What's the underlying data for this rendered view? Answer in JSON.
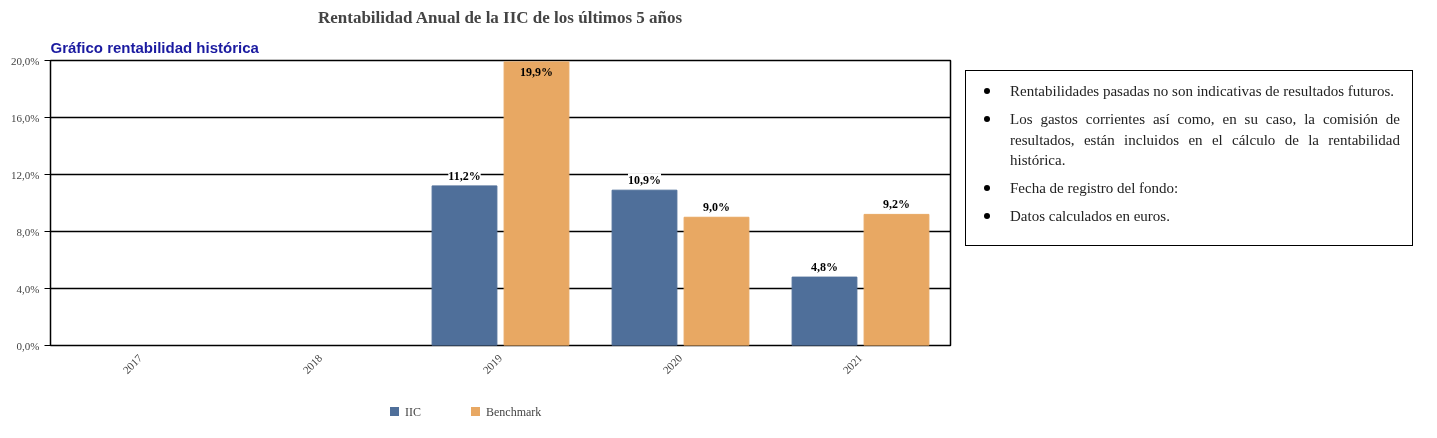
{
  "chart_data": {
    "type": "bar",
    "title": "Rentabilidad Anual de la IIC de los últimos 5 años",
    "categories": [
      "2017",
      "2018",
      "2019",
      "2020",
      "2021"
    ],
    "series": [
      {
        "name": "IIC",
        "color": "#4f6f9a",
        "values": [
          null,
          null,
          11.2,
          10.9,
          4.8
        ],
        "value_labels": [
          null,
          null,
          "11,2%",
          "10,9%",
          "4,8%"
        ]
      },
      {
        "name": "Benchmark",
        "color": "#e8a863",
        "values": [
          null,
          null,
          19.9,
          9.0,
          9.2
        ],
        "value_labels": [
          null,
          null,
          "19,9%",
          "9,0%",
          "9,2%"
        ]
      }
    ],
    "ylim": [
      0,
      20
    ],
    "yticks": [
      {
        "value": 0,
        "label": "0,0%"
      },
      {
        "value": 4,
        "label": "4,0%"
      },
      {
        "value": 8,
        "label": "8,0%"
      },
      {
        "value": 12,
        "label": "12,0%"
      },
      {
        "value": 16,
        "label": "16,0%"
      },
      {
        "value": 20,
        "label": "20,0%"
      }
    ],
    "grid": "y",
    "legend": "bottom",
    "annotations": [
      "Gráfico rentabilidad histórica",
      "Rentabilidades pasadas no son indicativas de resultados futuros.",
      "Los gastos corrientes así como, en su caso, la comisión de resultados, están incluidos en el cálculo de la rentabilidad histórica.",
      "Fecha de registro del fondo:",
      "Datos calculados en euros."
    ]
  }
}
